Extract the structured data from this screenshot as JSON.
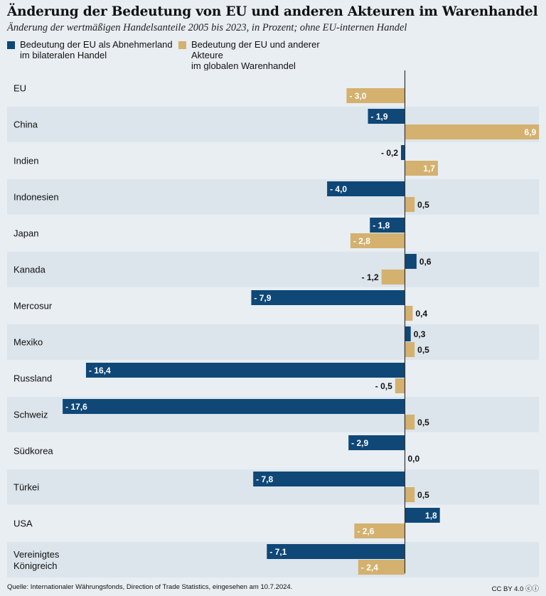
{
  "chart_data": {
    "type": "bar",
    "orientation": "horizontal",
    "title": "Änderung der Bedeutung von EU und anderen Akteuren im Warenhandel",
    "subtitle": "Änderung der wertmäßigen Handelsanteile 2005 bis 2023, in Prozent; ohne EU-internen Handel",
    "categories": [
      "EU",
      "China",
      "Indien",
      "Indonesien",
      "Japan",
      "Kanada",
      "Mercosur",
      "Mexiko",
      "Russland",
      "Schweiz",
      "Südkorea",
      "Türkei",
      "USA",
      "Vereinigtes Königreich"
    ],
    "category_lines": [
      [
        "EU"
      ],
      [
        "China"
      ],
      [
        "Indien"
      ],
      [
        "Indonesien"
      ],
      [
        "Japan"
      ],
      [
        "Kanada"
      ],
      [
        "Mercosur"
      ],
      [
        "Mexiko"
      ],
      [
        "Russland"
      ],
      [
        "Schweiz"
      ],
      [
        "Südkorea"
      ],
      [
        "Türkei"
      ],
      [
        "USA"
      ],
      [
        "Vereinigtes",
        "Königreich"
      ]
    ],
    "series": [
      {
        "name": "Bedeutung der EU als Abnehmerland im bilateralen Handel",
        "color": "#0f4777",
        "values": [
          null,
          -1.9,
          -0.2,
          -4.0,
          -1.8,
          0.6,
          -7.9,
          0.3,
          -16.4,
          -17.6,
          -2.9,
          -7.8,
          1.8,
          -7.1
        ],
        "labels": [
          "",
          "- 1,9",
          "- 0,2",
          "- 4,0",
          "- 1,8",
          "0,6",
          "- 7,9",
          "0,3",
          "- 16,4",
          "- 17,6",
          "- 2,9",
          "- 7,8",
          "1,8",
          "- 7,1"
        ]
      },
      {
        "name": "Bedeutung der EU und anderer Akteure im globalen Warenhandel",
        "color": "#d4b16e",
        "values": [
          -3.0,
          6.9,
          1.7,
          0.5,
          -2.8,
          -1.2,
          0.4,
          0.5,
          -0.5,
          0.5,
          0.0,
          0.5,
          -2.6,
          -2.4
        ],
        "labels": [
          "- 3,0",
          "6,9",
          "1,7",
          "0,5",
          "- 2,8",
          "- 1,2",
          "0,4",
          "0,5",
          "- 0,5",
          "0,5",
          "0,0",
          "0,5",
          "- 2,6",
          "- 2,4"
        ]
      }
    ],
    "xlim": [
      -18.0,
      6.9
    ],
    "grid": false
  },
  "legend": [
    {
      "line1": "Bedeutung der EU als Abnehmerland",
      "line2": "im bilateralen Handel",
      "color": "#0f4777"
    },
    {
      "line1": "Bedeutung der EU und anderer Akteure",
      "line2": "im globalen Warenhandel",
      "color": "#d4b16e"
    }
  ],
  "footer": {
    "source": "Quelle: Internationaler Währungsfonds, Direction of Trade Statistics, eingesehen am 10.7.2024.",
    "license": "CC BY 4.0 ⓒⓘ"
  }
}
